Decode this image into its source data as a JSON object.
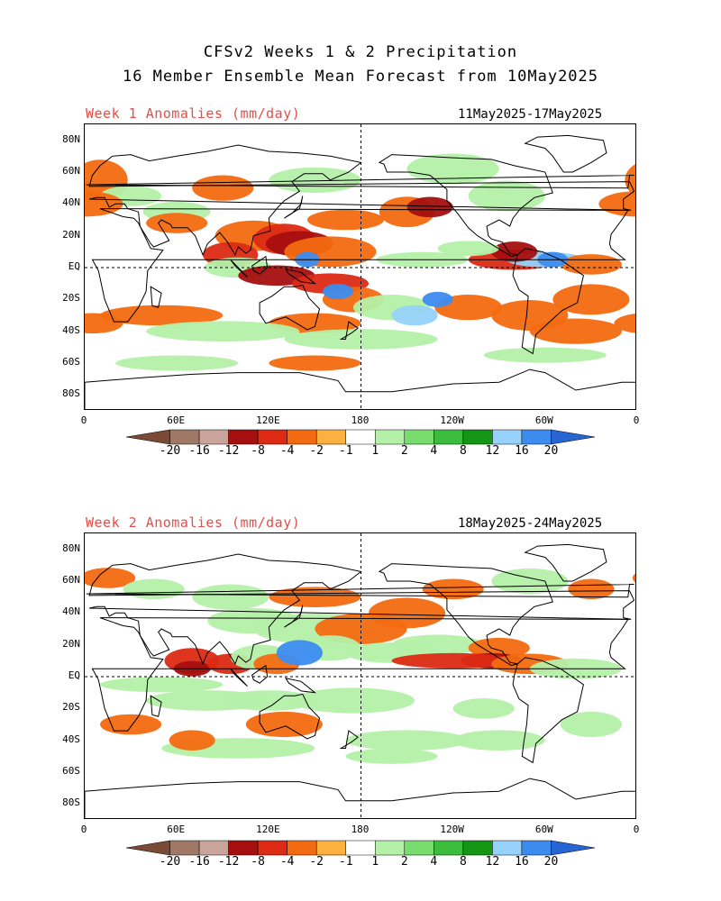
{
  "titles": {
    "line1": "CFSv2 Weeks 1 & 2 Precipitation",
    "line2": "16 Member Ensemble Mean Forecast from 10May2025"
  },
  "panels": [
    {
      "title": "Week 1 Anomalies (mm/day)",
      "dates": "11May2025-17May2025"
    },
    {
      "title": "Week 2 Anomalies (mm/day)",
      "dates": "18May2025-24May2025"
    }
  ],
  "lat_labels": [
    "80N",
    "60N",
    "40N",
    "20N",
    "EQ",
    "20S",
    "40S",
    "60S",
    "80S"
  ],
  "lon_labels": [
    "0",
    "60E",
    "120E",
    "180",
    "120W",
    "60W",
    "0"
  ],
  "colorbar": {
    "labels": [
      "-20",
      "-16",
      "-12",
      "-8",
      "-4",
      "-2",
      "-1",
      "1",
      "2",
      "4",
      "8",
      "12",
      "16",
      "20"
    ],
    "colors": [
      "#7a4a36",
      "#a07866",
      "#c9a49a",
      "#a50f0f",
      "#dc2a14",
      "#f36a10",
      "#fbb040",
      "#ffffff",
      "#b4f0a8",
      "#78dc6e",
      "#3cbc3c",
      "#149614",
      "#96d2fa",
      "#3c8cf0",
      "#2864d2"
    ]
  }
}
